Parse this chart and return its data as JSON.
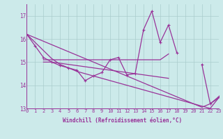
{
  "xlabel": "Windchill (Refroidissement éolien,°C)",
  "x_values": [
    0,
    1,
    2,
    3,
    4,
    5,
    6,
    7,
    8,
    9,
    10,
    11,
    12,
    13,
    14,
    15,
    16,
    17,
    18,
    19,
    20,
    21,
    22,
    23
  ],
  "line_zigzag": [
    16.2,
    15.7,
    15.2,
    15.0,
    14.85,
    14.75,
    14.65,
    14.2,
    14.4,
    14.55,
    15.1,
    15.2,
    14.45,
    14.5,
    16.4,
    17.2,
    15.85,
    16.6,
    15.4,
    null,
    null,
    14.9,
    13.2,
    13.5
  ],
  "line_upper_flat": [
    null,
    null,
    15.1,
    15.1,
    15.1,
    15.1,
    15.1,
    15.1,
    15.1,
    15.1,
    15.1,
    15.1,
    15.1,
    15.1,
    15.1,
    15.1,
    15.1,
    15.35,
    null,
    null,
    null,
    null,
    null,
    null
  ],
  "line_mid_flat": [
    null,
    null,
    15.0,
    15.0,
    14.95,
    14.9,
    14.85,
    14.8,
    14.75,
    14.7,
    14.65,
    14.6,
    14.55,
    14.5,
    14.45,
    14.4,
    14.35,
    14.3,
    null,
    null,
    null,
    null,
    null,
    null
  ],
  "line_steep1": [
    16.2,
    15.85,
    15.5,
    15.15,
    14.9,
    14.75,
    14.6,
    14.5,
    14.4,
    14.3,
    14.2,
    14.1,
    14.0,
    13.9,
    13.8,
    13.7,
    13.6,
    13.5,
    13.4,
    13.3,
    13.2,
    13.1,
    13.0,
    13.45
  ],
  "line_steep2": [
    16.2,
    16.05,
    15.9,
    15.75,
    15.6,
    15.45,
    15.3,
    15.15,
    15.0,
    14.85,
    14.7,
    14.55,
    14.4,
    14.25,
    14.1,
    13.95,
    13.8,
    13.65,
    13.5,
    13.35,
    13.2,
    13.05,
    13.2,
    13.45
  ],
  "bg_color": "#cceaea",
  "line_color": "#993399",
  "grid_color": "#aacccc",
  "ylim": [
    13.0,
    17.5
  ],
  "yticks": [
    13,
    14,
    15,
    16,
    17
  ],
  "xlim": [
    0,
    23
  ]
}
